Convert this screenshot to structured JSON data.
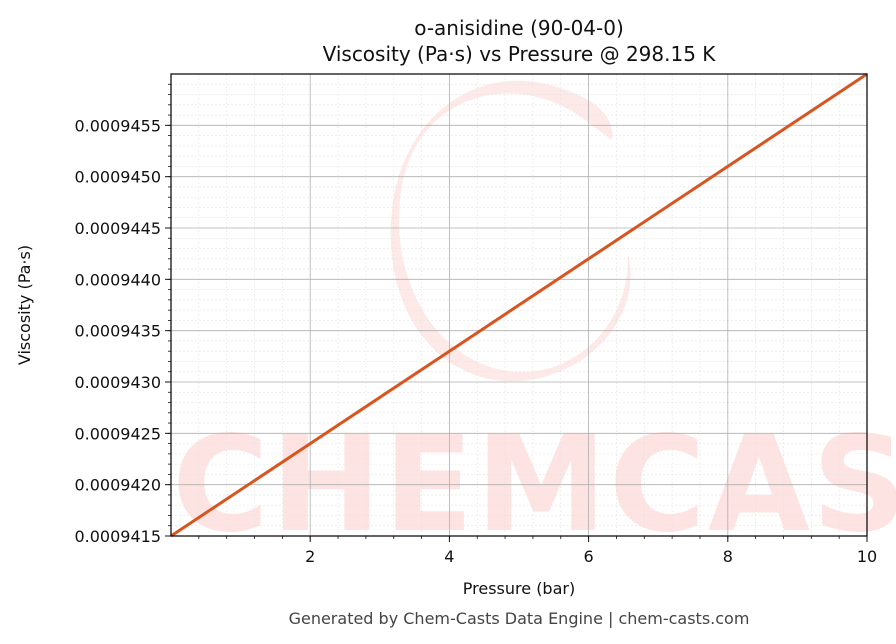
{
  "chart_data": {
    "type": "line",
    "title": "o-anisidine (90-04-0)",
    "subtitle": "Viscosity (Pa·s) vs Pressure @ 298.15 K",
    "xlabel": "Pressure (bar)",
    "ylabel": "Viscosity (Pa·s)",
    "xlim": [
      0.0,
      10.0
    ],
    "ylim": [
      0.0009415,
      0.000946
    ],
    "xticks": [
      2,
      4,
      6,
      8,
      10
    ],
    "xtick_labels": [
      "2",
      "4",
      "6",
      "8",
      "10"
    ],
    "yticks": [
      0.0009415,
      0.000942,
      0.0009425,
      0.000943,
      0.0009435,
      0.000944,
      0.0009445,
      0.000945,
      0.0009455
    ],
    "ytick_labels": [
      "0.0009415",
      "0.0009420",
      "0.0009425",
      "0.0009430",
      "0.0009435",
      "0.0009440",
      "0.0009445",
      "0.0009450",
      "0.0009455"
    ],
    "grid": true,
    "series": [
      {
        "color": "#d9541e",
        "x": [
          0.0,
          2.0,
          4.0,
          6.0,
          8.0,
          10.0
        ],
        "y": [
          0.0009415,
          0.0009424,
          0.0009433,
          0.0009442,
          0.0009451,
          0.000946
        ]
      }
    ]
  },
  "watermark": {
    "text": "CHEMCASTS",
    "color": "#fde3e1"
  },
  "footer": "Generated by Chem-Casts Data Engine | chem-casts.com"
}
